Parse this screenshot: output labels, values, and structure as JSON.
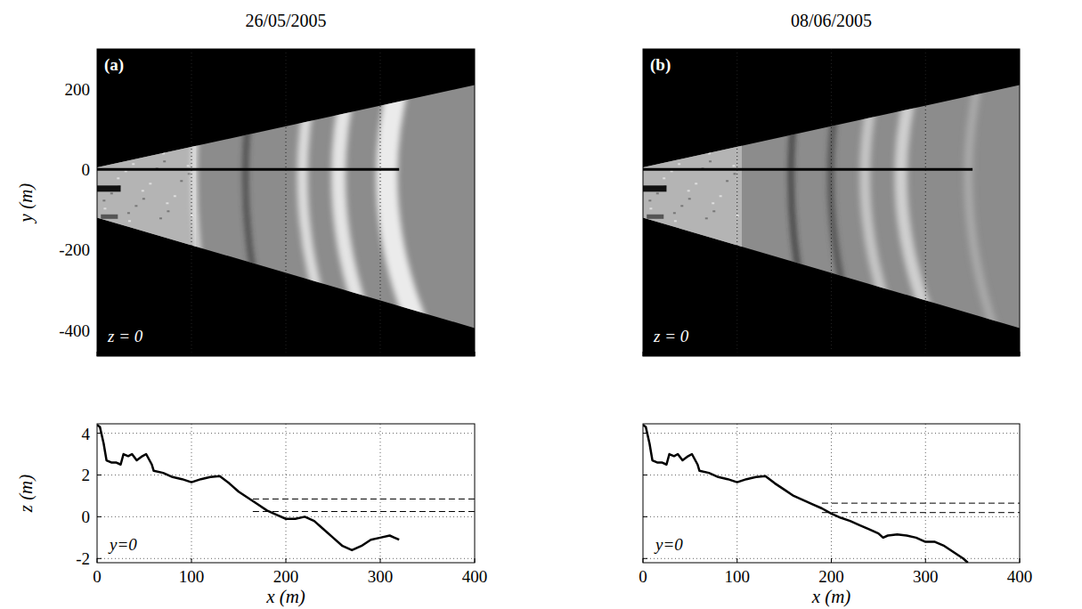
{
  "chart_data": [
    {
      "type": "image",
      "title": "26/05/2005",
      "label": "(a)",
      "annotation": "z = 0",
      "ylabel": "y (m)",
      "xlim": [
        0,
        400
      ],
      "ylim": [
        -465,
        300
      ],
      "xticks": [
        0,
        100,
        200,
        300,
        400
      ],
      "yticks": [
        -400,
        -200,
        0,
        200
      ],
      "grid": true,
      "tick_labels": "y",
      "series": [
        {
          "x": [
            0,
            320
          ],
          "values": [
            0,
            0
          ],
          "color": "#000000",
          "line_style": "solid"
        }
      ]
    },
    {
      "type": "image",
      "title": "08/06/2005",
      "label": "(b)",
      "annotation": "z = 0",
      "xlim": [
        0,
        400
      ],
      "ylim": [
        -465,
        300
      ],
      "xticks": [
        0,
        100,
        200,
        300,
        400
      ],
      "yticks": [
        -400,
        -200,
        0,
        200
      ],
      "grid": true,
      "tick_labels": false,
      "series": [
        {
          "x": [
            0,
            350
          ],
          "values": [
            0,
            0
          ],
          "color": "#000000",
          "line_style": "solid"
        }
      ]
    },
    {
      "type": "line",
      "xlabel": "x (m)",
      "ylabel": "z (m)",
      "annotation": "y=0",
      "xlim": [
        0,
        400
      ],
      "ylim": [
        -2.2,
        4.45
      ],
      "xticks": [
        0,
        100,
        200,
        300,
        400
      ],
      "yticks": [
        -2,
        0,
        2,
        4
      ],
      "grid": true,
      "series": [
        {
          "x": [
            0,
            3,
            7,
            10,
            15,
            20,
            25,
            28,
            33,
            37,
            42,
            48,
            52,
            58,
            60,
            70,
            80,
            90,
            100,
            110,
            120,
            130,
            140,
            150,
            160,
            170,
            180,
            190,
            200,
            210,
            220,
            230,
            240,
            250,
            260,
            270,
            280,
            290,
            300,
            310,
            315,
            320
          ],
          "values": [
            4.4,
            4.3,
            3.5,
            2.7,
            2.6,
            2.6,
            2.5,
            3.0,
            2.9,
            3.0,
            2.7,
            2.9,
            3.0,
            2.5,
            2.2,
            2.1,
            1.9,
            1.8,
            1.65,
            1.8,
            1.9,
            1.95,
            1.6,
            1.2,
            0.9,
            0.6,
            0.3,
            0.1,
            -0.1,
            -0.1,
            0.0,
            -0.2,
            -0.6,
            -1.0,
            -1.4,
            -1.6,
            -1.4,
            -1.1,
            -1.0,
            -0.9,
            -1.0,
            -1.1
          ],
          "color": "#000000",
          "line_style": "solid"
        },
        {
          "x": [
            165,
            400
          ],
          "values": [
            0.85,
            0.85
          ],
          "color": "#000000",
          "line_style": "dashed"
        },
        {
          "x": [
            165,
            400
          ],
          "values": [
            0.25,
            0.25
          ],
          "color": "#000000",
          "line_style": "dashed"
        }
      ]
    },
    {
      "type": "line",
      "xlabel": "x (m)",
      "annotation": "y=0",
      "xlim": [
        0,
        400
      ],
      "ylim": [
        -2.2,
        4.45
      ],
      "xticks": [
        0,
        100,
        200,
        300,
        400
      ],
      "yticks": [
        -2,
        0,
        2,
        4
      ],
      "grid": true,
      "tick_labels": "x",
      "series": [
        {
          "x": [
            0,
            3,
            7,
            10,
            15,
            20,
            25,
            28,
            33,
            37,
            42,
            48,
            52,
            58,
            60,
            70,
            80,
            90,
            100,
            110,
            120,
            130,
            140,
            150,
            160,
            170,
            180,
            190,
            200,
            210,
            220,
            230,
            240,
            250,
            255,
            260,
            270,
            280,
            290,
            300,
            310,
            315,
            320,
            330,
            340,
            345
          ],
          "values": [
            4.4,
            4.3,
            3.5,
            2.7,
            2.6,
            2.6,
            2.5,
            3.0,
            2.9,
            3.0,
            2.7,
            2.9,
            3.0,
            2.5,
            2.2,
            2.1,
            1.9,
            1.8,
            1.65,
            1.8,
            1.9,
            1.95,
            1.6,
            1.3,
            1.0,
            0.8,
            0.6,
            0.4,
            0.15,
            -0.05,
            -0.2,
            -0.4,
            -0.6,
            -0.8,
            -1.0,
            -0.9,
            -0.85,
            -0.9,
            -1.0,
            -1.2,
            -1.2,
            -1.3,
            -1.4,
            -1.7,
            -2.0,
            -2.2
          ],
          "color": "#000000",
          "line_style": "solid"
        },
        {
          "x": [
            190,
            400
          ],
          "values": [
            0.65,
            0.65
          ],
          "color": "#000000",
          "line_style": "dashed"
        },
        {
          "x": [
            190,
            400
          ],
          "values": [
            0.2,
            0.2
          ],
          "color": "#000000",
          "line_style": "dashed"
        }
      ]
    }
  ]
}
